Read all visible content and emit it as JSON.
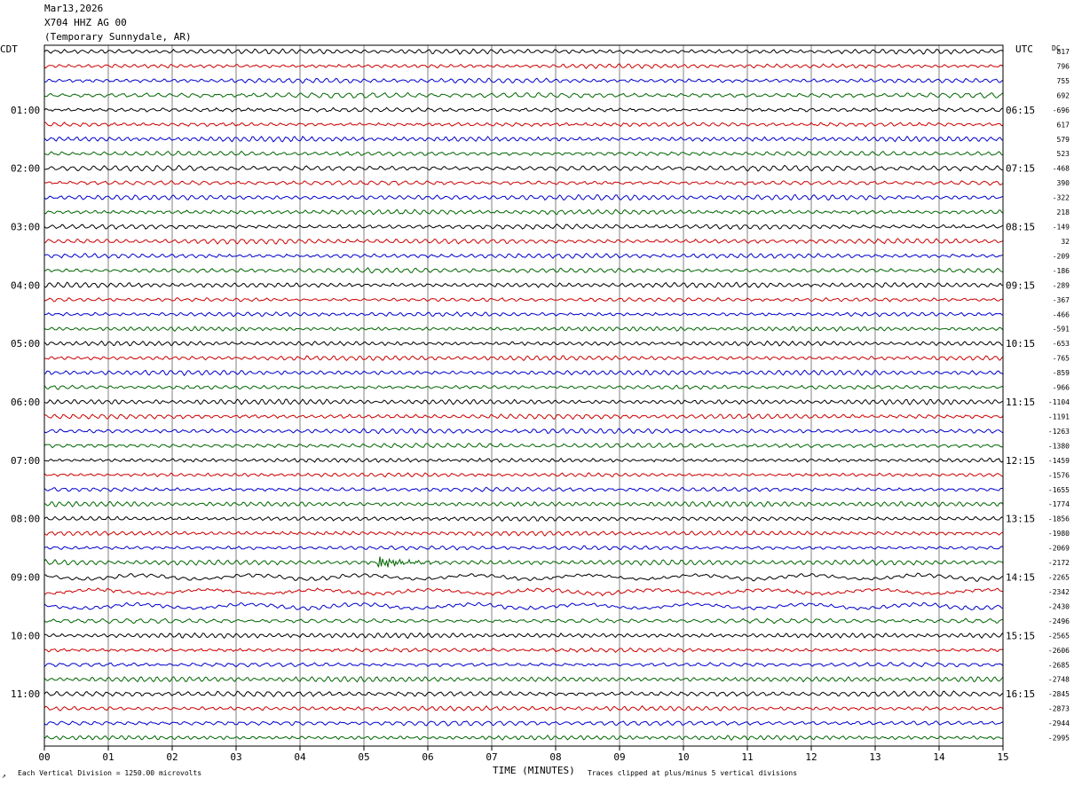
{
  "header": {
    "date": "Mar13,2026",
    "station": "X704 HHZ AG 00",
    "location": "(Temporary Sunnydale, AR)"
  },
  "left_zone": "CDT",
  "right_zone": "UTC",
  "dc_label": "DC",
  "footer": {
    "scale_note": "Each Vertical Division = 1250.00 microvolts",
    "xlabel": "TIME (MINUTES)",
    "clip_note": "Traces clipped at plus/minus 5 vertical divisions",
    "corner_mark": "↗"
  },
  "chart_data": {
    "type": "line",
    "xlabel": "TIME (MINUTES)",
    "xlim": [
      0,
      15
    ],
    "x_ticks": [
      "00",
      "01",
      "02",
      "03",
      "04",
      "05",
      "06",
      "07",
      "08",
      "09",
      "10",
      "11",
      "12",
      "13",
      "14",
      "15"
    ],
    "left_time_labels": [
      "01:00",
      "02:00",
      "03:00",
      "04:00",
      "05:00",
      "06:00",
      "07:00",
      "08:00",
      "09:00",
      "10:00",
      "11:00"
    ],
    "right_time_labels": [
      "06:15",
      "07:15",
      "08:15",
      "09:15",
      "10:15",
      "11:15",
      "12:15",
      "13:15",
      "14:15",
      "15:15",
      "16:15"
    ],
    "trace_colors": [
      "#000000",
      "#cc0000",
      "#0000cc",
      "#006600"
    ],
    "num_traces": 48,
    "dc_offsets": [
      "817",
      "796",
      "755",
      "692",
      "-696",
      "617",
      "579",
      "523",
      "-468",
      "390",
      "-322",
      "218",
      "-149",
      "32",
      "-209",
      "-186",
      "-289",
      "-367",
      "-466",
      "-591",
      "-653",
      "-765",
      "-859",
      "-966",
      "-1104",
      "-1191",
      "-1263",
      "-1380",
      "-1459",
      "-1576",
      "-1655",
      "-1774",
      "-1856",
      "-1980",
      "-2069",
      "-2172",
      "-2265",
      "-2342",
      "-2430",
      "-2496",
      "-2565",
      "-2606",
      "-2685",
      "-2748",
      "-2845",
      "-2873",
      "-2944",
      "-2995"
    ],
    "grid": true
  }
}
